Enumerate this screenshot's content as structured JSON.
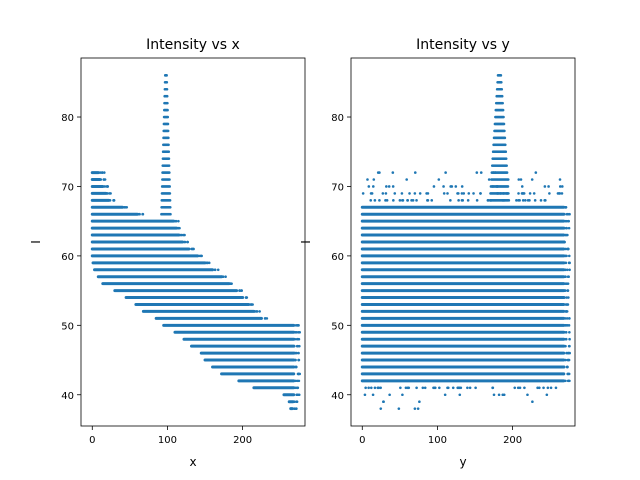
{
  "chart_data": [
    {
      "type": "scatter",
      "title": "Intensity vs x",
      "xlabel": "x",
      "ylabel": "I",
      "xlim": [
        -15,
        283
      ],
      "ylim": [
        35.5,
        88.5
      ],
      "xticks": [
        0,
        100,
        200
      ],
      "yticks": [
        40,
        50,
        60,
        70,
        80
      ],
      "grid": false,
      "color": "#1f77b4",
      "series": [
        {
          "description": "Dense horizontal bands: each integer intensity value spans an x range",
          "bands": [
            {
              "I": 72,
              "x": [
                0,
                8
              ]
            },
            {
              "I": 71,
              "x": [
                0,
                10
              ]
            },
            {
              "I": 70,
              "x": [
                0,
                14
              ]
            },
            {
              "I": 69,
              "x": [
                0,
                18
              ]
            },
            {
              "I": 68,
              "x": [
                0,
                22
              ]
            },
            {
              "I": 67,
              "x": [
                0,
                40
              ]
            },
            {
              "I": 66,
              "x": [
                0,
                60
              ]
            },
            {
              "I": 65,
              "x": [
                0,
                108
              ]
            },
            {
              "I": 64,
              "x": [
                0,
                112
              ]
            },
            {
              "I": 63,
              "x": [
                0,
                115
              ]
            },
            {
              "I": 62,
              "x": [
                0,
                120
              ]
            },
            {
              "I": 61,
              "x": [
                0,
                128
              ]
            },
            {
              "I": 60,
              "x": [
                0,
                140
              ]
            },
            {
              "I": 59,
              "x": [
                1,
                150
              ]
            },
            {
              "I": 58,
              "x": [
                3,
                160
              ]
            },
            {
              "I": 57,
              "x": [
                8,
                172
              ]
            },
            {
              "I": 56,
              "x": [
                14,
                182
              ]
            },
            {
              "I": 55,
              "x": [
                30,
                192
              ]
            },
            {
              "I": 54,
              "x": [
                45,
                200
              ]
            },
            {
              "I": 53,
              "x": [
                58,
                208
              ]
            },
            {
              "I": 52,
              "x": [
                68,
                215
              ]
            },
            {
              "I": 51,
              "x": [
                85,
                225
              ]
            },
            {
              "I": 50,
              "x": [
                95,
                268
              ]
            },
            {
              "I": 49,
              "x": [
                110,
                268
              ]
            },
            {
              "I": 48,
              "x": [
                122,
                268
              ]
            },
            {
              "I": 47,
              "x": [
                132,
                268
              ]
            },
            {
              "I": 46,
              "x": [
                145,
                268
              ]
            },
            {
              "I": 45,
              "x": [
                150,
                268
              ]
            },
            {
              "I": 44,
              "x": [
                160,
                268
              ]
            },
            {
              "I": 43,
              "x": [
                172,
                268
              ]
            },
            {
              "I": 42,
              "x": [
                195,
                268
              ]
            },
            {
              "I": 41,
              "x": [
                215,
                268
              ]
            },
            {
              "I": 40,
              "x": [
                255,
                268
              ]
            },
            {
              "I": 39,
              "x": [
                262,
                267
              ]
            },
            {
              "I": 38,
              "x": [
                264,
                266
              ]
            }
          ],
          "peak": {
            "x": [
              92,
              104
            ],
            "I": [
              66,
              86
            ]
          }
        }
      ]
    },
    {
      "type": "scatter",
      "title": "Intensity vs y",
      "xlabel": "y",
      "ylabel": "I",
      "xlim": [
        -15,
        283
      ],
      "ylim": [
        35.5,
        88.5
      ],
      "xticks": [
        0,
        100,
        200
      ],
      "yticks": [
        40,
        50,
        60,
        70,
        80
      ],
      "grid": false,
      "color": "#1f77b4",
      "series": [
        {
          "description": "Dense horizontal bands spanning full y range for intensities 42-67",
          "bands": [
            {
              "I": 67,
              "y": [
                0,
                268
              ]
            },
            {
              "I": 66,
              "y": [
                0,
                268
              ]
            },
            {
              "I": 65,
              "y": [
                0,
                268
              ]
            },
            {
              "I": 64,
              "y": [
                0,
                268
              ]
            },
            {
              "I": 63,
              "y": [
                0,
                268
              ]
            },
            {
              "I": 62,
              "y": [
                0,
                268
              ]
            },
            {
              "I": 61,
              "y": [
                0,
                268
              ]
            },
            {
              "I": 60,
              "y": [
                0,
                268
              ]
            },
            {
              "I": 59,
              "y": [
                0,
                268
              ]
            },
            {
              "I": 58,
              "y": [
                0,
                268
              ]
            },
            {
              "I": 57,
              "y": [
                0,
                268
              ]
            },
            {
              "I": 56,
              "y": [
                0,
                268
              ]
            },
            {
              "I": 55,
              "y": [
                0,
                268
              ]
            },
            {
              "I": 54,
              "y": [
                0,
                268
              ]
            },
            {
              "I": 53,
              "y": [
                0,
                268
              ]
            },
            {
              "I": 52,
              "y": [
                0,
                268
              ]
            },
            {
              "I": 51,
              "y": [
                0,
                268
              ]
            },
            {
              "I": 50,
              "y": [
                0,
                268
              ]
            },
            {
              "I": 49,
              "y": [
                0,
                268
              ]
            },
            {
              "I": 48,
              "y": [
                0,
                268
              ]
            },
            {
              "I": 47,
              "y": [
                0,
                268
              ]
            },
            {
              "I": 46,
              "y": [
                0,
                268
              ]
            },
            {
              "I": 45,
              "y": [
                0,
                268
              ]
            },
            {
              "I": 44,
              "y": [
                0,
                268
              ]
            },
            {
              "I": 43,
              "y": [
                0,
                268
              ]
            },
            {
              "I": 42,
              "y": [
                0,
                268
              ]
            }
          ],
          "sparse_top": {
            "I": [
              68,
              72
            ],
            "y": [
              0,
              268
            ]
          },
          "sparse_bottom": {
            "I": [
              38,
              41
            ],
            "y": [
              0,
              268
            ]
          },
          "peak": {
            "y": [
              170,
              195
            ],
            "I": [
              68,
              86
            ]
          }
        }
      ]
    }
  ]
}
